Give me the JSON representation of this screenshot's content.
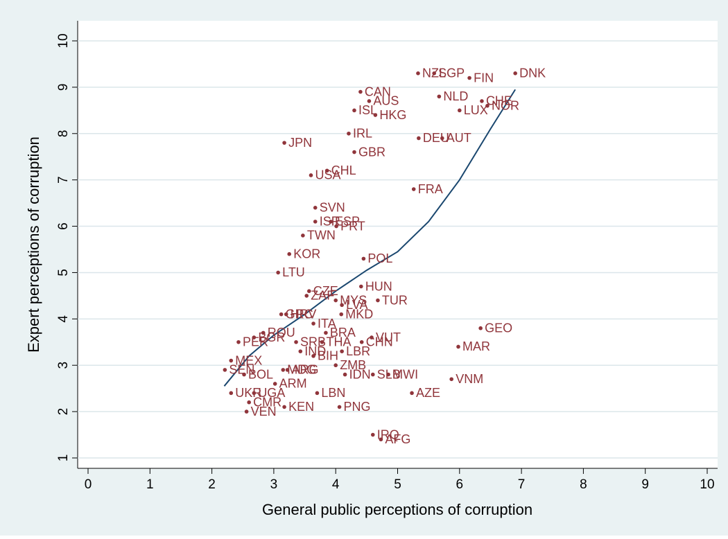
{
  "chart_data": {
    "type": "scatter",
    "x_label": "General public perceptions of corruption",
    "y_label": "Expert perceptions of corruption",
    "xlim": [
      0,
      10
    ],
    "ylim": [
      1,
      10
    ],
    "xticks": [
      0,
      1,
      2,
      3,
      4,
      5,
      6,
      7,
      8,
      9,
      10
    ],
    "yticks": [
      1,
      2,
      3,
      4,
      5,
      6,
      7,
      8,
      9,
      10
    ],
    "grid": true,
    "color": "#90353b",
    "fit_color": "#1a476f",
    "labels": [
      "NZL",
      "SGP",
      "FIN",
      "DNK",
      "CAN",
      "AUS",
      "NLD",
      "CHE",
      "NOR",
      "ISL",
      "HKG",
      "LUX",
      "IRL",
      "JPN",
      "DEU",
      "AUT",
      "GBR",
      "CHL",
      "USA",
      "FRA",
      "SVN",
      "ISR",
      "ESP",
      "PRT",
      "TWN",
      "KOR",
      "POL",
      "LTU",
      "HUN",
      "CZE",
      "ZAF",
      "MYS",
      "TUR",
      "LVA",
      "HRV",
      "GRC",
      "MKD",
      "ITA",
      "GEO",
      "BRA",
      "ROU",
      "VUT",
      "CHN",
      "THA",
      "SRB",
      "PER",
      "BGR",
      "MAR",
      "IND",
      "LBR",
      "BIH",
      "MEX",
      "ZMB",
      "SEN",
      "MDG",
      "ARG",
      "BOL",
      "IDN",
      "SLB",
      "MWI",
      "ARM",
      "VNM",
      "AZE",
      "UKR",
      "UGA",
      "LBN",
      "CMR",
      "KEN",
      "PNG",
      "VEN",
      "IRQ",
      "AFG"
    ],
    "x": [
      5.33,
      5.59,
      6.16,
      6.9,
      4.4,
      4.54,
      5.67,
      6.36,
      6.45,
      4.3,
      4.64,
      6.0,
      4.21,
      3.17,
      5.34,
      5.72,
      4.3,
      3.86,
      3.6,
      5.26,
      3.67,
      3.67,
      3.92,
      4.01,
      3.47,
      3.25,
      4.45,
      3.07,
      4.41,
      3.57,
      3.53,
      4.0,
      4.68,
      4.1,
      3.2,
      3.12,
      4.09,
      3.64,
      6.34,
      3.84,
      2.83,
      4.58,
      4.42,
      3.78,
      3.36,
      2.43,
      2.68,
      5.98,
      3.43,
      4.1,
      3.64,
      2.31,
      4.0,
      2.21,
      3.15,
      3.22,
      2.52,
      4.15,
      4.6,
      4.85,
      3.02,
      5.87,
      5.23,
      2.31,
      2.68,
      3.7,
      2.6,
      3.17,
      4.06,
      2.56,
      4.6,
      4.73
    ],
    "y": [
      9.3,
      9.3,
      9.2,
      9.3,
      8.9,
      8.7,
      8.8,
      8.7,
      8.6,
      8.5,
      8.4,
      8.5,
      8.0,
      7.8,
      7.9,
      7.9,
      7.6,
      7.2,
      7.1,
      6.8,
      6.4,
      6.1,
      6.1,
      6.0,
      5.8,
      5.4,
      5.3,
      5.0,
      4.7,
      4.6,
      4.5,
      4.4,
      4.4,
      4.3,
      4.1,
      4.1,
      4.1,
      3.9,
      3.8,
      3.7,
      3.7,
      3.6,
      3.5,
      3.5,
      3.5,
      3.5,
      3.6,
      3.4,
      3.3,
      3.3,
      3.2,
      3.1,
      3.0,
      2.9,
      2.9,
      2.9,
      2.8,
      2.8,
      2.8,
      2.8,
      2.6,
      2.7,
      2.4,
      2.4,
      2.4,
      2.4,
      2.2,
      2.1,
      2.1,
      2.0,
      1.5,
      1.4
    ],
    "fit": {
      "x": [
        2.2,
        2.6,
        3,
        3.5,
        4,
        4.5,
        5,
        5.5,
        6,
        6.5,
        6.9
      ],
      "y": [
        2.55,
        3.2,
        3.65,
        4.1,
        4.6,
        5.05,
        5.45,
        6.1,
        7.0,
        8.1,
        8.95
      ]
    }
  }
}
